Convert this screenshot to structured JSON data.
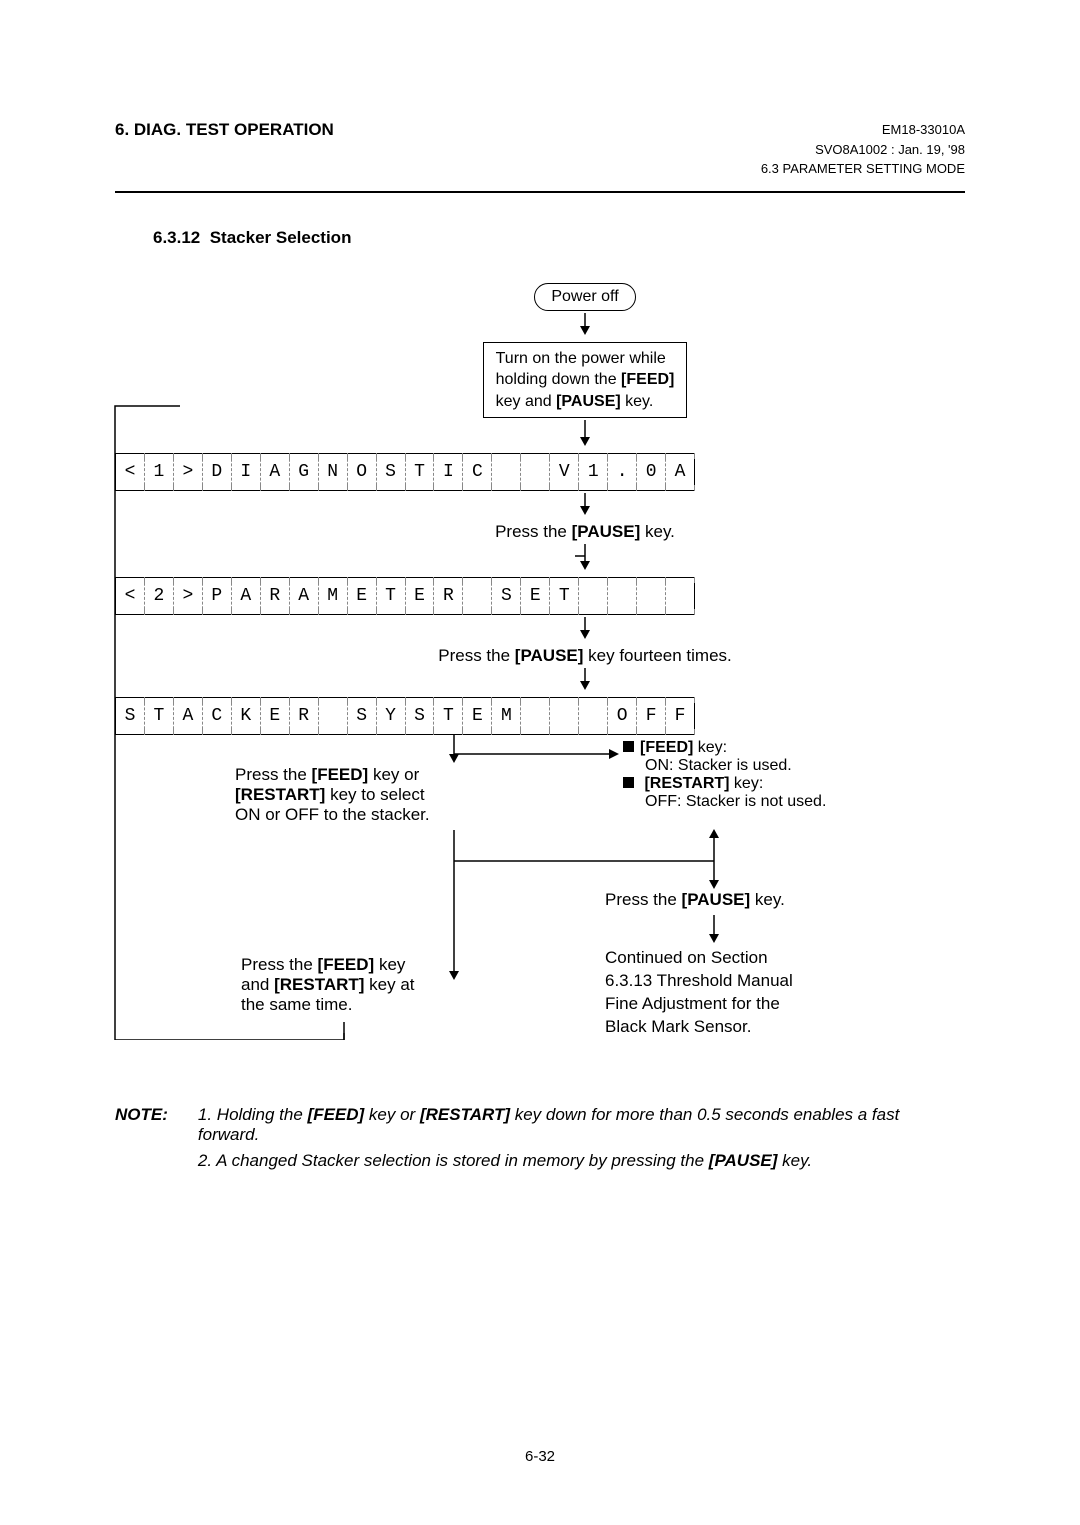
{
  "header": {
    "left": "6. DIAG. TEST OPERATION",
    "right_line1": "EM18-33010A",
    "right_line2": "SVO8A1002 : Jan. 19, '98",
    "right_line3": "6.3 PARAMETER SETTING MODE"
  },
  "section": {
    "number": "6.3.12",
    "title": "Stacker Selection"
  },
  "flow": {
    "power_off": "Power off",
    "turn_on_pre": "Turn on the power while",
    "turn_on_mid_a": "holding down the ",
    "turn_on_mid_b": "[FEED]",
    "turn_on_last_a": "key and ",
    "turn_on_last_b": "[PAUSE]",
    "turn_on_last_c": " key.",
    "lcd1": [
      "<",
      "1",
      ">",
      "D",
      "I",
      "A",
      "G",
      "N",
      "O",
      "S",
      "T",
      "I",
      "C",
      "",
      "",
      "V",
      "1",
      ".",
      "0",
      "A"
    ],
    "press_pause_a": "Press the ",
    "press_pause_b": "[PAUSE]",
    "press_pause_c": " key.",
    "lcd2": [
      "<",
      "2",
      ">",
      "P",
      "A",
      "R",
      "A",
      "M",
      "E",
      "T",
      "E",
      "R",
      "",
      "S",
      "E",
      "T",
      "",
      "",
      "",
      ""
    ],
    "press_pause14_a": "Press the ",
    "press_pause14_b": "[PAUSE]",
    "press_pause14_c": " key fourteen times.",
    "lcd3": [
      "S",
      "T",
      "A",
      "C",
      "K",
      "E",
      "R",
      "",
      "S",
      "Y",
      "S",
      "T",
      "E",
      "M",
      "",
      "",
      "",
      "O",
      "F",
      "F"
    ],
    "select_l1a": "Press  the  ",
    "select_l1b": "[FEED]",
    "select_l1c": "  key  or",
    "select_l2a": "[RESTART]",
    "select_l2b": "  key  to  select",
    "select_l3": "ON or OFF to the stacker.",
    "feed_key_label": "[FEED]",
    "feed_key_suffix": " key:",
    "feed_on": "ON:   Stacker is used.",
    "restart_key_label": "[RESTART]",
    "restart_key_suffix": " key:",
    "restart_off": "OFF: Stacker is not used.",
    "press_pause2_a": "Press  the  ",
    "press_pause2_b": "[PAUSE]",
    "press_pause2_c": "  key.",
    "sametime_l1a": "Press  the  ",
    "sametime_l1b": "[FEED]",
    "sametime_l1c": "  key",
    "sametime_l2a": "and ",
    "sametime_l2b": "[RESTART]",
    "sametime_l2c": " key at",
    "sametime_l3": "the same time.",
    "continued_l1": "Continued on Section",
    "continued_l2": "6.3.13 Threshold Manual",
    "continued_l3": "Fine Adjustment for the",
    "continued_l4": "Black Mark Sensor."
  },
  "note": {
    "label": "NOTE:",
    "item1_pre": "1.  Holding the ",
    "item1_b1": "[FEED]",
    "item1_mid": " key or ",
    "item1_b2": "[RESTART]",
    "item1_post": " key down for more than 0.5 seconds enables a fast forward.",
    "item2_pre": "2.  A changed Stacker selection is stored in memory by pressing the ",
    "item2_b": "[PAUSE]",
    "item2_post": " key."
  },
  "page_number": "6-32",
  "style": {
    "arrow_color": "#000",
    "dash_color": "#888"
  }
}
